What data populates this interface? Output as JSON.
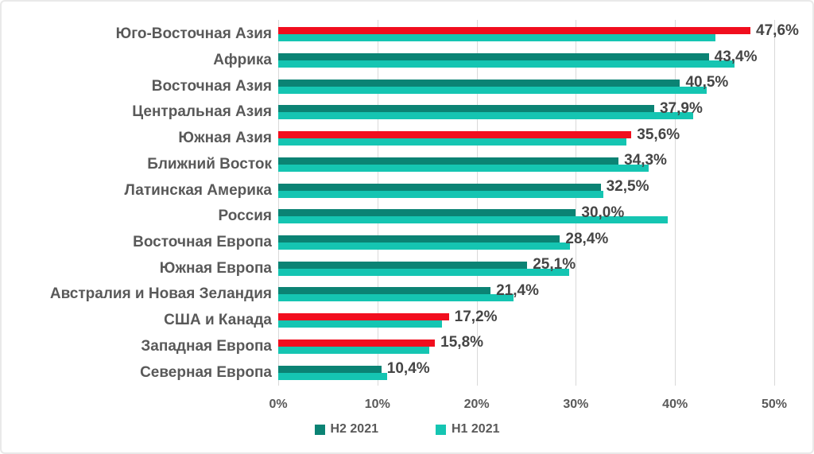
{
  "chart_data": {
    "type": "bar",
    "orientation": "horizontal",
    "title": "",
    "xlabel": "",
    "ylabel": "",
    "xlim": [
      0,
      53.2
    ],
    "grid": "vertical",
    "legend_position": "bottom-center",
    "categories": [
      "Юго-Восточная Азия",
      "Африка",
      "Восточная Азия",
      "Центральная Азия",
      "Южная Азия",
      "Ближний Восток",
      "Латинская Америка",
      "Россия",
      "Восточная Европа",
      "Южная Европа",
      "Австралия и Новая Зеландия",
      "США и Канада",
      "Западная Европа",
      "Северная Европа"
    ],
    "series": [
      {
        "name": "H2 2021",
        "color": "#0b8374",
        "values": [
          47.6,
          43.4,
          40.5,
          37.9,
          35.6,
          34.3,
          32.5,
          30.0,
          28.4,
          25.1,
          21.4,
          17.2,
          15.8,
          10.4
        ],
        "data_labels": [
          "47,6%",
          "43,4%",
          "40,5%",
          "37,9%",
          "35,6%",
          "34,3%",
          "32,5%",
          "30,0%",
          "28,4%",
          "25,1%",
          "21,4%",
          "17,2%",
          "15,8%",
          "10,4%"
        ],
        "highlight_color": "#f10e1e",
        "highlighted_categories": [
          "Юго-Восточная Азия",
          "Южная Азия",
          "США и Канада",
          "Западная Европа"
        ]
      },
      {
        "name": "H1 2021",
        "color": "#15c5b2",
        "values": [
          44.1,
          46.0,
          43.2,
          41.8,
          35.1,
          37.3,
          32.8,
          39.3,
          29.4,
          29.3,
          23.7,
          16.5,
          15.2,
          11.0
        ],
        "data_labels": []
      }
    ],
    "x_ticks": {
      "values": [
        0,
        10,
        20,
        30,
        40,
        50
      ],
      "labels": [
        "0%",
        "10%",
        "20%",
        "30%",
        "40%",
        "50%"
      ]
    },
    "colors": {
      "gridline": "#d9d9d9",
      "category_text": "#595959",
      "value_text": "#454545",
      "axis_text": "#595959"
    },
    "legend": [
      {
        "label": "H2 2021",
        "color": "#0b8374"
      },
      {
        "label": "H1 2021",
        "color": "#15c5b2"
      }
    ]
  }
}
